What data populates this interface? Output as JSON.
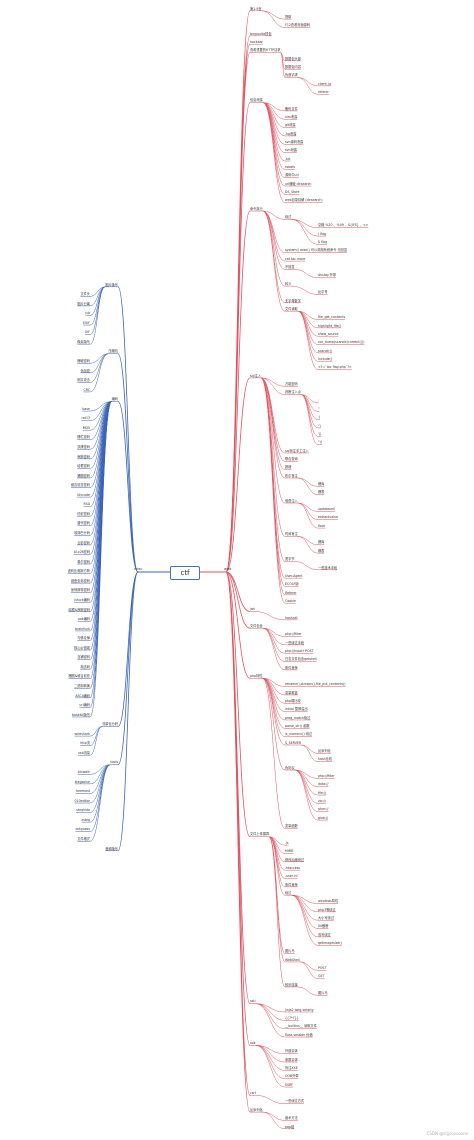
{
  "root": "ctf",
  "watermark": "CSDN @stjjsovsoone",
  "colors": {
    "web": "#e0525f",
    "misc": "#3b63b8"
  },
  "web": {
    "label": "web",
    "nodes": [
      {
        "text": "第1-9页",
        "level": 1
      },
      {
        "text": "提取",
        "level": 2
      },
      {
        "text": "F12查看页面源码",
        "level": 2
      },
      {
        "text": "burpsuite抓包",
        "level": 1
      },
      {
        "text": "hackbar",
        "level": 1
      },
      {
        "text": "查看重要的HTTP请求",
        "level": 1
      },
      {
        "text": "数据包头部",
        "level": 2
      },
      {
        "text": "数据包内容",
        "level": 2
      },
      {
        "text": "伪造请求",
        "level": 2
      },
      {
        "text": "client_ip",
        "level": 3
      },
      {
        "text": "referer",
        "level": 3
      },
      {
        "text": "信息泄露",
        "level": 1
      },
      {
        "text": "备份文件",
        "level": 2
      },
      {
        "text": "vim泄露",
        "level": 2
      },
      {
        "text": "git泄露",
        "level": 2
      },
      {
        "text": ".hg泄露",
        "level": 2
      },
      {
        "text": "svn源码泄露",
        "level": 2
      },
      {
        "text": "svn泄露",
        "level": 2
      },
      {
        "text": ".txt",
        "level": 2
      },
      {
        "text": "robots",
        "level": 2
      },
      {
        "text": "源码中url",
        "level": 2
      },
      {
        "text": "url爆破 dirsearch",
        "level": 2
      },
      {
        "text": "DS_Store",
        "level": 2
      },
      {
        "text": "web目录猜解 (dirsearch)",
        "level": 2
      },
      {
        "text": "命令执行",
        "level": 1
      },
      {
        "text": "绕过",
        "level": 2
      },
      {
        "text": "空格 %20 、%09 、${IFS} 、<>",
        "level": 3
      },
      {
        "text": "/ flag",
        "level": 3
      },
      {
        "text": "$ flag",
        "level": 3
      },
      {
        "text": "system() exec() 可以调用系统命令 无回显",
        "level": 2
      },
      {
        "text": "cat tac more",
        "level": 2
      },
      {
        "text": "不回显",
        "level": 2
      },
      {
        "text": "dnslog 外带",
        "level": 3
      },
      {
        "text": "转义",
        "level": 2
      },
      {
        "text": "反引号",
        "level": 3
      },
      {
        "text": "无字母数字",
        "level": 2
      },
      {
        "text": "文件读取",
        "level": 2
      },
      {
        "text": "file_get_contents",
        "level": 3
      },
      {
        "text": "highlight_file()",
        "level": 3
      },
      {
        "text": "show_source",
        "level": 3
      },
      {
        "text": "var_dump(scandir(current()))",
        "level": 3
      },
      {
        "text": "scandir()",
        "level": 3
      },
      {
        "text": "include()",
        "level": 3
      },
      {
        "text": "<?=`tac flag.php`?>",
        "level": 3
      },
      {
        "text": "sql注入",
        "level": 1
      },
      {
        "text": "万能密码",
        "level": 2
      },
      {
        "text": "判断注入点",
        "level": 2
      },
      {
        "text": "'",
        "level": 3
      },
      {
        "text": "\"",
        "level": 3
      },
      {
        "text": "')",
        "level": 3
      },
      {
        "text": "\")",
        "level": 3
      },
      {
        "text": "'))",
        "level": 3
      },
      {
        "text": "\"))",
        "level": 3
      },
      {
        "text": "sql盲注手工注入",
        "level": 2
      },
      {
        "text": "联合查询",
        "level": 2
      },
      {
        "text": "报错",
        "level": 2
      },
      {
        "text": "布尔盲注",
        "level": 2
      },
      {
        "text": "爆库",
        "level": 3
      },
      {
        "text": "爆表",
        "level": 3
      },
      {
        "text": "堆叠注入",
        "level": 2
      },
      {
        "text": "updatexml",
        "level": 3
      },
      {
        "text": "extractvalue",
        "level": 3
      },
      {
        "text": "floor",
        "level": 3
      },
      {
        "text": "时间盲注",
        "level": 2
      },
      {
        "text": "爆库",
        "level": 3
      },
      {
        "text": "爆表",
        "level": 3
      },
      {
        "text": "宽字节",
        "level": 2
      },
      {
        "text": "一些技术手段",
        "level": 3
      },
      {
        "text": "User-Agent",
        "level": 2
      },
      {
        "text": "ECOLF版",
        "level": 2
      },
      {
        "text": "Referer",
        "level": 2
      },
      {
        "text": "Cookie",
        "level": 2
      },
      {
        "text": "jwt",
        "level": 1
      },
      {
        "text": "hashcat",
        "level": 2
      },
      {
        "text": "文件包含",
        "level": 1
      },
      {
        "text": "php://filter",
        "level": 2
      },
      {
        "text": "一些绕过手段",
        "level": 2
      },
      {
        "text": "php://input+POST",
        "level": 2
      },
      {
        "text": "日志文件包含getshell",
        "level": 2
      },
      {
        "text": "条件竞争",
        "level": 2
      },
      {
        "text": "php特性",
        "level": 1
      },
      {
        "text": "rename(),strcspn(),file_put_contents()",
        "level": 2
      },
      {
        "text": "变量覆盖",
        "level": 2
      },
      {
        "text": "php弱比较",
        "level": 2
      },
      {
        "text": "intval 整数溢出",
        "level": 2
      },
      {
        "text": "preg_match绕过",
        "level": 2
      },
      {
        "text": "parse_str() 函数",
        "level": 2
      },
      {
        "text": "is_numeric() 绕过",
        "level": 2
      },
      {
        "text": "$_SERVER",
        "level": 2
      },
      {
        "text": "反序列化",
        "level": 3
      },
      {
        "text": "hash比较",
        "level": 3
      },
      {
        "text": "伪协议",
        "level": 2
      },
      {
        "text": "php://filter",
        "level": 3
      },
      {
        "text": "data://",
        "level": 3
      },
      {
        "text": "file://",
        "level": 3
      },
      {
        "text": "zip://",
        "level": 3
      },
      {
        "text": "phar://",
        "level": 3
      },
      {
        "text": "glob://",
        "level": 3
      },
      {
        "text": "变量函数",
        "level": 2
      },
      {
        "text": "文件上传漏洞",
        "level": 1
      },
      {
        "text": ".js",
        "level": 2
      },
      {
        "text": "MIME",
        "level": 2
      },
      {
        "text": "修改后缀绕过",
        "level": 2
      },
      {
        "text": ".htaccess",
        "level": 2
      },
      {
        "text": ".user.ini",
        "level": 2
      },
      {
        "text": "条件竞争",
        "level": 2
      },
      {
        "text": "绕过",
        "level": 2
      },
      {
        "text": "windows特性",
        "level": 3
      },
      {
        "text": "php3等绕过",
        "level": 3
      },
      {
        "text": "大小写绕过",
        "level": 3
      },
      {
        "text": "00截断",
        "level": 3
      },
      {
        "text": "双写绕过",
        "level": 3
      },
      {
        "text": "getimagesize()",
        "level": 3
      },
      {
        "text": "图片马",
        "level": 2
      },
      {
        "text": "WebShell",
        "level": 2
      },
      {
        "text": "POST",
        "level": 3
      },
      {
        "text": "GET",
        "level": 3
      },
      {
        "text": "蚁剑连接",
        "level": 2
      },
      {
        "text": "图片马",
        "level": 3
      },
      {
        "text": "ssti",
        "level": 1
      },
      {
        "text": "jinja2 twig smarty",
        "level": 2
      },
      {
        "text": "{{7*7}}",
        "level": 2
      },
      {
        "text": "__builtins__ 读取文件",
        "level": 2
      },
      {
        "text": "flask session 伪造",
        "level": 2
      },
      {
        "text": "xxe",
        "level": 1
      },
      {
        "text": "外部实体",
        "level": 2
      },
      {
        "text": "参数实体",
        "level": 2
      },
      {
        "text": "盲注XXE",
        "level": 2
      },
      {
        "text": "OOB外带",
        "level": 2
      },
      {
        "text": "SSRF",
        "level": 2
      },
      {
        "text": "csrf",
        "level": 1
      },
      {
        "text": "一些绕过方式",
        "level": 2
      },
      {
        "text": "反序列化",
        "level": 1
      },
      {
        "text": "魔术方法",
        "level": 2
      },
      {
        "text": "pop链",
        "level": 2
      }
    ]
  },
  "misc": {
    "label": "misc",
    "nodes": [
      {
        "text": "图片隐写",
        "level": 1
      },
      {
        "text": "文件头",
        "level": 2
      },
      {
        "text": "图片分离",
        "level": 2
      },
      {
        "text": "lsb",
        "level": 2
      },
      {
        "text": "EXIF",
        "level": 2
      },
      {
        "text": "GIF",
        "level": 2
      },
      {
        "text": "像素隐写",
        "level": 2
      },
      {
        "text": "压缩包",
        "level": 1
      },
      {
        "text": "爆破密码",
        "level": 2
      },
      {
        "text": "伪加密",
        "level": 2
      },
      {
        "text": "明文攻击",
        "level": 2
      },
      {
        "text": "CRC",
        "level": 2
      },
      {
        "text": "编码",
        "level": 1
      },
      {
        "text": "base",
        "level": 2
      },
      {
        "text": "rot13",
        "level": 2
      },
      {
        "text": "MD5",
        "level": 2
      },
      {
        "text": "栅栏密码",
        "level": 2
      },
      {
        "text": "凯撒密码",
        "level": 2
      },
      {
        "text": "摩斯密码",
        "level": 2
      },
      {
        "text": "培根密码",
        "level": 2
      },
      {
        "text": "猪圈密码",
        "level": 2
      },
      {
        "text": "维吉尼亚密码",
        "level": 2
      },
      {
        "text": "Unicode",
        "level": 2
      },
      {
        "text": "RSA",
        "level": 2
      },
      {
        "text": "仿射密码",
        "level": 2
      },
      {
        "text": "替代密码",
        "level": 2
      },
      {
        "text": "埃特巴什码",
        "level": 2
      },
      {
        "text": "云影密码",
        "level": 2
      },
      {
        "text": "A1z26密码",
        "level": 2
      },
      {
        "text": "希尔密码",
        "level": 2
      },
      {
        "text": "波利比奥斯方阵",
        "level": 2
      },
      {
        "text": "键盘坐标密码",
        "level": 2
      },
      {
        "text": "曼彻斯特密码",
        "level": 2
      },
      {
        "text": "jsfuck编码",
        "level": 2
      },
      {
        "text": "培根&摩斯密码",
        "level": 2
      },
      {
        "text": "ook编码",
        "level": 2
      },
      {
        "text": "brainfuck",
        "level": 2
      },
      {
        "text": "与佛论禅",
        "level": 2
      },
      {
        "text": "核心价值观",
        "level": 2
      },
      {
        "text": "当铺密码",
        "level": 2
      },
      {
        "text": "敲击码",
        "level": 2
      },
      {
        "text": "猪圈&维吉尼亚",
        "level": 2
      },
      {
        "text": "二进制转换",
        "level": 2
      },
      {
        "text": "ASCII编码",
        "level": 2
      },
      {
        "text": "url编码",
        "level": 2
      },
      {
        "text": "base64隐写",
        "level": 2
      },
      {
        "text": "流量包分析",
        "level": 1
      },
      {
        "text": "wireshark",
        "level": 2
      },
      {
        "text": "http流",
        "level": 2
      },
      {
        "text": "usb流量",
        "level": 2
      },
      {
        "text": "tools",
        "level": 1
      },
      {
        "text": "binwalk",
        "level": 2
      },
      {
        "text": "stegsolve",
        "level": 2
      },
      {
        "text": "foremost",
        "level": 2
      },
      {
        "text": "010editor",
        "level": 2
      },
      {
        "text": "steghide",
        "level": 2
      },
      {
        "text": "zsteg",
        "level": 2
      },
      {
        "text": "outguess",
        "level": 2
      },
      {
        "text": "文件格式",
        "level": 2
      },
      {
        "text": "音频隐写",
        "level": 1
      }
    ]
  }
}
